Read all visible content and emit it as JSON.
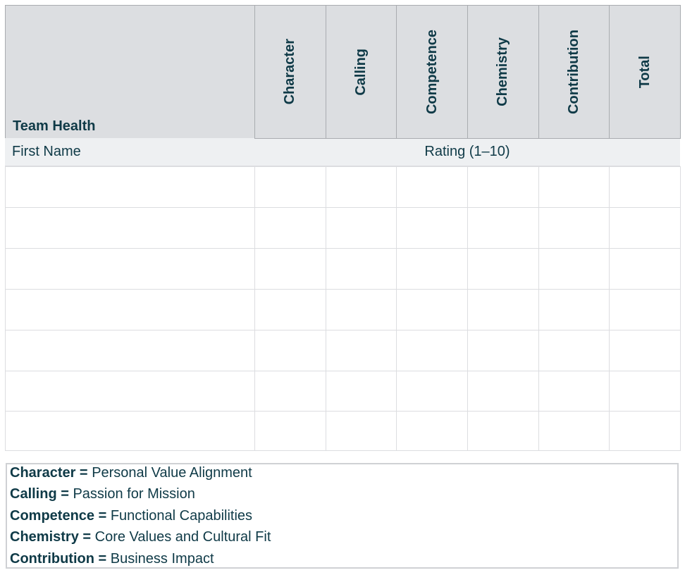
{
  "table": {
    "title": "Team Health",
    "columns": [
      "Character",
      "Calling",
      "Competence",
      "Chemistry",
      "Contribution",
      "Total"
    ],
    "name_label": "First Name",
    "rating_label": "Rating (1–10)"
  },
  "legend": [
    {
      "term": "Character =",
      "definition": "Personal Value Alignment"
    },
    {
      "term": "Calling =",
      "definition": "Passion for Mission"
    },
    {
      "term": "Competence =",
      "definition": "Functional Capabilities"
    },
    {
      "term": "Chemistry =",
      "definition": "Core Values and Cultural Fit"
    },
    {
      "term": "Contribution =",
      "definition": "Business Impact"
    }
  ]
}
